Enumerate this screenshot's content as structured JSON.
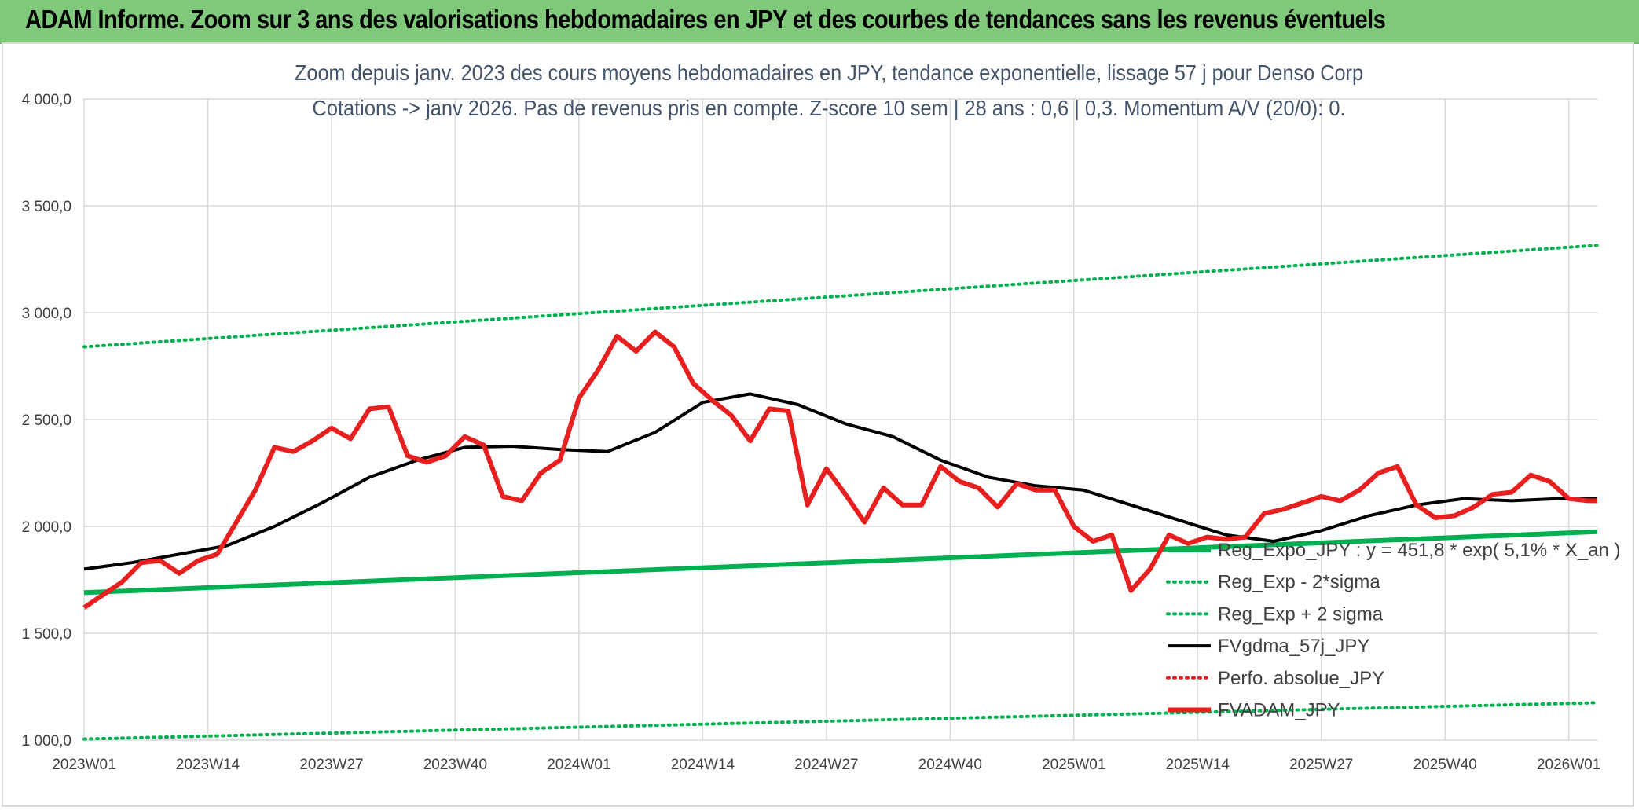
{
  "header": {
    "title": "ADAM Informe. Zoom sur 3 ans des valorisations hebdomadaires en JPY et des courbes de tendances sans les revenus éventuels"
  },
  "colors": {
    "header_bg": "#80c97a",
    "series_red": "#e81f1f",
    "series_black": "#000000",
    "trend_green": "#00b050",
    "band_green": "#00b050",
    "perf_red": "#e81f1f",
    "title_text": "#44546a"
  },
  "chart_data": {
    "type": "line",
    "title_lines": [
      "Zoom depuis janv. 2023 des cours moyens hebdomadaires en JPY, tendance exponentielle, lissage 57 j pour Denso Corp",
      "Cotations -> janv 2026. Pas de revenus pris en compte. Z-score 10 sem | 28 ans : 0,6  | 0,3. Momentum A/V (20/0): 0."
    ],
    "ylim": [
      1000,
      4000
    ],
    "yticks": [
      "1 000,0",
      "1 500,0",
      "2 000,0",
      "2 500,0",
      "3 000,0",
      "3 500,0",
      "4 000,0"
    ],
    "ytick_values": [
      1000,
      1500,
      2000,
      2500,
      3000,
      3500,
      4000
    ],
    "xlim": [
      1,
      160
    ],
    "xticks": [
      "2023W01",
      "2023W14",
      "2023W27",
      "2023W40",
      "2024W01",
      "2024W14",
      "2024W27",
      "2024W40",
      "2025W01",
      "2025W14",
      "2025W27",
      "2025W40",
      "2026W01"
    ],
    "xtick_weeks": [
      1,
      14,
      27,
      40,
      53,
      66,
      79,
      92,
      105,
      118,
      131,
      144,
      157
    ],
    "grid": true,
    "legend_position": "bottom-right",
    "series": [
      {
        "name": "Reg_Expo_JPY : y = 451,8 * exp( 5,1% *  X_an )",
        "style": "solid-thick",
        "color": "#00b050",
        "x": [
          1,
          160
        ],
        "y": [
          1690,
          1975
        ]
      },
      {
        "name": "Reg_Exp - 2*sigma",
        "style": "dotted",
        "color": "#00b050",
        "x": [
          1,
          160
        ],
        "y": [
          1005,
          1175
        ]
      },
      {
        "name": "Reg_Exp + 2 sigma",
        "style": "dotted",
        "color": "#00b050",
        "x": [
          1,
          160
        ],
        "y": [
          2840,
          3315
        ]
      },
      {
        "name": "FVgdma_57j_JPY",
        "style": "solid",
        "color": "#000000",
        "x": [
          1,
          6,
          11,
          16,
          21,
          26,
          31,
          36,
          41,
          46,
          51,
          56,
          61,
          66,
          71,
          76,
          81,
          86,
          91,
          96,
          101,
          106,
          111,
          116,
          121,
          126,
          131,
          136,
          141,
          146,
          151,
          156,
          160
        ],
        "y": [
          1800,
          1830,
          1870,
          1910,
          2000,
          2110,
          2230,
          2310,
          2370,
          2375,
          2360,
          2350,
          2440,
          2580,
          2620,
          2570,
          2480,
          2420,
          2310,
          2230,
          2190,
          2170,
          2100,
          2030,
          1960,
          1930,
          1980,
          2050,
          2100,
          2130,
          2120,
          2130,
          2130
        ]
      },
      {
        "name": "Perfo. absolue_JPY",
        "style": "dotted",
        "color": "#e81f1f",
        "x": [],
        "y": []
      },
      {
        "name": "FVADAM_JPY",
        "style": "solid-thick",
        "color": "#e81f1f",
        "x": [
          1,
          3,
          5,
          7,
          9,
          11,
          13,
          15,
          17,
          19,
          21,
          23,
          25,
          27,
          29,
          31,
          33,
          35,
          37,
          39,
          41,
          43,
          45,
          47,
          49,
          51,
          53,
          55,
          57,
          59,
          61,
          63,
          65,
          67,
          69,
          71,
          73,
          75,
          77,
          79,
          81,
          83,
          85,
          87,
          89,
          91,
          93,
          95,
          97,
          99,
          101,
          103,
          105,
          107,
          109,
          111,
          113,
          115,
          117,
          119,
          121,
          123,
          125,
          127,
          129,
          131,
          133,
          135,
          137,
          139,
          141,
          143,
          145,
          147,
          149,
          151,
          153,
          155,
          157,
          159,
          160
        ],
        "y": [
          1620,
          1680,
          1740,
          1830,
          1840,
          1780,
          1840,
          1870,
          2020,
          2170,
          2370,
          2350,
          2400,
          2460,
          2410,
          2550,
          2560,
          2330,
          2300,
          2330,
          2420,
          2380,
          2140,
          2120,
          2250,
          2310,
          2600,
          2730,
          2890,
          2820,
          2910,
          2840,
          2670,
          2590,
          2520,
          2400,
          2550,
          2540,
          2100,
          2270,
          2150,
          2020,
          2180,
          2100,
          2100,
          2280,
          2210,
          2180,
          2090,
          2200,
          2170,
          2170,
          2000,
          1930,
          1960,
          1700,
          1800,
          1960,
          1920,
          1950,
          1940,
          1950,
          2060,
          2080,
          2110,
          2140,
          2120,
          2170,
          2250,
          2280,
          2100,
          2040,
          2050,
          2090,
          2150,
          2160,
          2240,
          2210,
          2130,
          2120,
          2120
        ]
      }
    ]
  }
}
